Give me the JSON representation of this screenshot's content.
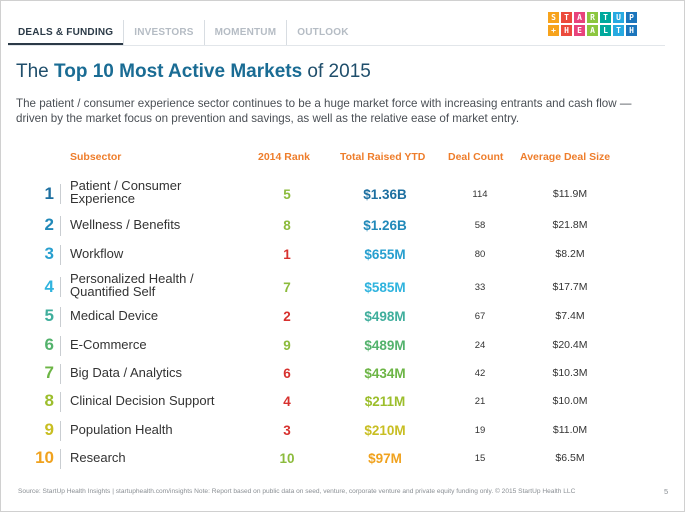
{
  "nav": {
    "tabs": [
      "DEALS & FUNDING",
      "INVESTORS",
      "MOMENTUM",
      "OUTLOOK"
    ]
  },
  "logo": {
    "row1": [
      "S",
      "T",
      "A",
      "R",
      "T",
      "U",
      "P"
    ],
    "row2": [
      "+",
      "H",
      "E",
      "A",
      "L",
      "T",
      "H"
    ],
    "colors": [
      "#f7a31c",
      "#ec4a3c",
      "#e8437c",
      "#8cc63f",
      "#00a99d",
      "#27aae1",
      "#1b75bc"
    ]
  },
  "title": {
    "prefix": "The ",
    "highlight": "Top 10 Most Active Markets",
    "suffix": " of 2015"
  },
  "description": "The patient / consumer experience sector continues to be a huge market force with increasing entrants and cash flow — driven by the market focus on prevention and savings, as well as the relative ease of market entry.",
  "table": {
    "headers": {
      "subsector": "Subsector",
      "rank": "2014 Rank",
      "total": "Total Raised YTD",
      "count": "Deal Count",
      "avg": "Average Deal Size"
    },
    "rows": [
      {
        "num": "1",
        "subsector_lines": [
          "Patient / Consumer",
          "Experience"
        ],
        "rank": "5",
        "total": "$1.36B",
        "count": "114",
        "avg": "$11.9M",
        "num_color": "#1d6fa0",
        "rank_color": "#8cbb3c",
        "total_color": "#1d6fa0"
      },
      {
        "num": "2",
        "subsector_lines": [
          "Wellness / Benefits"
        ],
        "rank": "8",
        "total": "$1.26B",
        "count": "58",
        "avg": "$21.8M",
        "num_color": "#2189b9",
        "rank_color": "#8cbb3c",
        "total_color": "#2189b9"
      },
      {
        "num": "3",
        "subsector_lines": [
          "Workflow"
        ],
        "rank": "1",
        "total": "$655M",
        "count": "80",
        "avg": "$8.2M",
        "num_color": "#279fcf",
        "rank_color": "#d7312e",
        "total_color": "#279fcf"
      },
      {
        "num": "4",
        "subsector_lines": [
          "Personalized Health /",
          "Quantified Self"
        ],
        "rank": "7",
        "total": "$585M",
        "count": "33",
        "avg": "$17.7M",
        "num_color": "#2fb3de",
        "rank_color": "#8cbb3c",
        "total_color": "#2fb3de"
      },
      {
        "num": "5",
        "subsector_lines": [
          "Medical Device"
        ],
        "rank": "2",
        "total": "$498M",
        "count": "67",
        "avg": "$7.4M",
        "num_color": "#3fae9c",
        "rank_color": "#d7312e",
        "total_color": "#3fae9c"
      },
      {
        "num": "6",
        "subsector_lines": [
          "E-Commerce"
        ],
        "rank": "9",
        "total": "$489M",
        "count": "24",
        "avg": "$20.4M",
        "num_color": "#53b26c",
        "rank_color": "#8cbb3c",
        "total_color": "#53b26c"
      },
      {
        "num": "7",
        "subsector_lines": [
          "Big Data / Analytics"
        ],
        "rank": "6",
        "total": "$434M",
        "count": "42",
        "avg": "$10.3M",
        "num_color": "#6cb545",
        "rank_color": "#d7312e",
        "total_color": "#6cb545"
      },
      {
        "num": "8",
        "subsector_lines": [
          "Clinical Decision Support"
        ],
        "rank": "4",
        "total": "$211M",
        "count": "21",
        "avg": "$10.0M",
        "num_color": "#9cbe2c",
        "rank_color": "#d7312e",
        "total_color": "#9cbe2c"
      },
      {
        "num": "9",
        "subsector_lines": [
          "Population Health"
        ],
        "rank": "3",
        "total": "$210M",
        "count": "19",
        "avg": "$11.0M",
        "num_color": "#c8be22",
        "rank_color": "#d7312e",
        "total_color": "#c8be22"
      },
      {
        "num": "10",
        "subsector_lines": [
          "Research"
        ],
        "rank": "10",
        "total": "$97M",
        "count": "15",
        "avg": "$6.5M",
        "num_color": "#f0a21e",
        "rank_color": "#8cbb3c",
        "total_color": "#f0a21e"
      }
    ]
  },
  "footer": "Source: StartUp Health Insights | startuphealth.com/insights Note: Report based on public data on seed, venture, corporate venture and private equity funding only. © 2015 StartUp Health LLC",
  "page_number": "5"
}
